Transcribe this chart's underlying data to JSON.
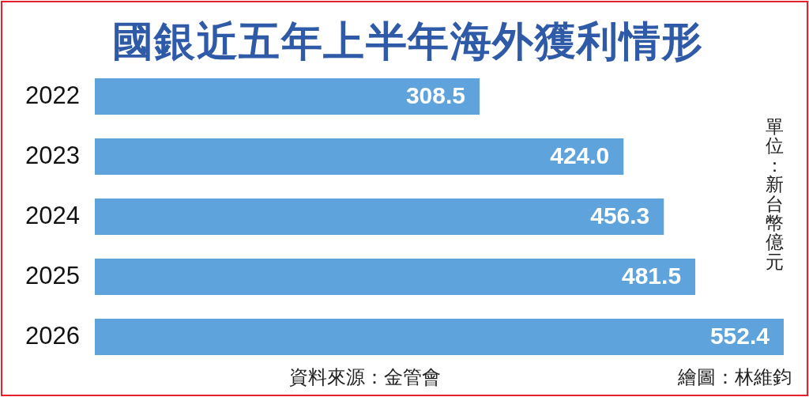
{
  "chart_data": {
    "type": "bar",
    "orientation": "horizontal",
    "title": "國銀近五年上半年海外獲利情形",
    "categories": [
      "2022",
      "2023",
      "2024",
      "2025",
      "2026"
    ],
    "values": [
      308.5,
      424.0,
      456.3,
      481.5,
      552.4
    ],
    "color": "#5fa3dd",
    "value_labels": [
      "308.5",
      "424.0",
      "456.3",
      "481.5",
      "552.4"
    ],
    "annotations": [
      "單位：新台幣億元",
      "資料來源：金管會",
      "繪圖：林維鈞"
    ]
  }
}
